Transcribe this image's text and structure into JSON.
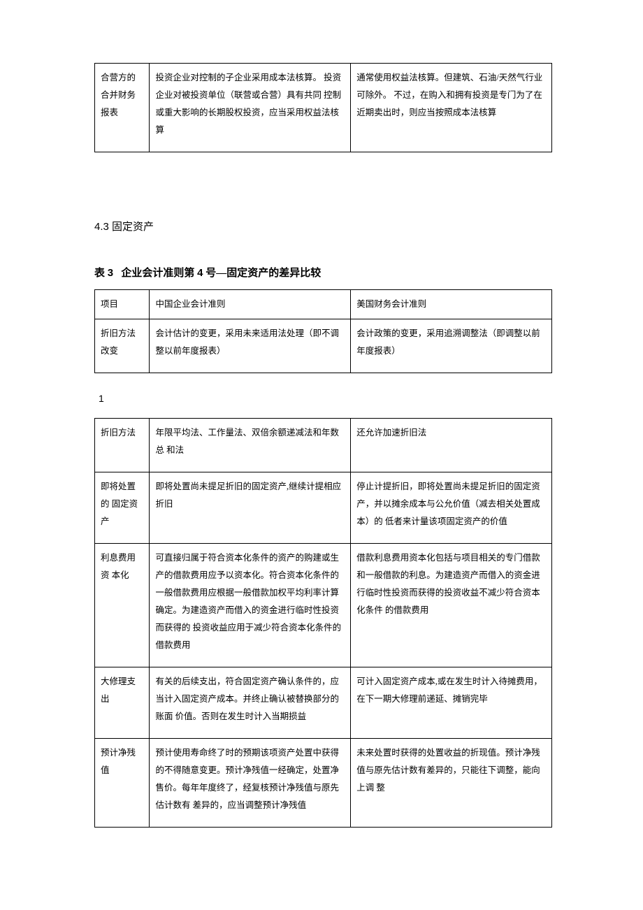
{
  "table1": {
    "rows": [
      {
        "c0": "合营方的合并财务报表",
        "c1": "投资企业对控制的子企业采用成本法核算。 投资企业对被投资单位（联营或合营）具有共同 控制或重大影响的长期股权投资，应当采用权益法核算",
        "c2": "通常使用权益法核算。但建筑、石油/天然气行业可除外。 不过，在购入和拥有投资是专门为了在近期卖出时，则应当按照成本法核算"
      }
    ]
  },
  "section": {
    "number": "4.3",
    "title": "固定资产"
  },
  "table2_caption": {
    "prefix": "表",
    "table_num": "3",
    "mid": "企业会计准则第",
    "std_num": "4",
    "suffix": "号—固定资产的差异比较"
  },
  "table2_header": {
    "c0": "项目",
    "c1": "中国企业会计准则",
    "c2": "美国财务会计准则"
  },
  "table2_rows": [
    {
      "c0": "折旧方法改变",
      "c1": "会计估计的变更，采用未来适用法处理（即不调整以前年度报表）",
      "c2": "会计政策的变更，采用追溯调整法（即调整以前年度报表）"
    }
  ],
  "page_marker": "1",
  "table3_rows": [
    {
      "c0": "折旧方法",
      "c1": "年限平均法、工作量法、双倍余额递减法和年数总 和法",
      "c2": "还允许加速折旧法"
    },
    {
      "c0": "即将处置的 固定资产",
      "c1": "即将处置尚未提足折旧的固定资产,继续计提相应 折旧",
      "c2": "停止计提折旧，即将处置尚未提足折旧的固定资产，并以摊余成本与公允价值（减去相关处置成本）的 低者来计量该项固定资产的价值"
    },
    {
      "c0": "利息费用资 本化",
      "c1": "可直接归属于符合资本化条件的资产的购建或生产的借款费用应予以资本化。符合资本化条件的一般借款费用应根据一般借款加权平均利率计算确定。为建造资产而借入的资金进行临时性投资而获得的 投资收益应用于减少符合资本化条件的借款费用",
      "c2": "借款利息费用资本化包括与项目相关的专门借款和一般借款的利息。为建造资产而借入的资金进行临时性投资而获得的投资收益不减少符合资本化条件 的借款费用"
    },
    {
      "c0": "大修理支出",
      "c1": "有关的后续支出，符合固定资产确认条件的，应当计入固定资产成本。并终止确认被替换部分的账面 价值。否则在发生时计入当期损益",
      "c2": "可计入固定资产成本,或在发生时计入待摊费用， 在下一期大修理前递延、摊销完毕"
    },
    {
      "c0": "预计净残值",
      "c1": "预计使用寿命终了时的预期该项资产处置中获得的不得随意变更。预计净残值一经确定，处置净售价。每年年度终了，经复核预计净残值与原先估计数有 差异的，应当调整预计净残值",
      "c2": "未来处置时获得的处置收益的折现值。预计净残值与原先估计数有差异的，只能往下调整，能向上调 整"
    }
  ]
}
